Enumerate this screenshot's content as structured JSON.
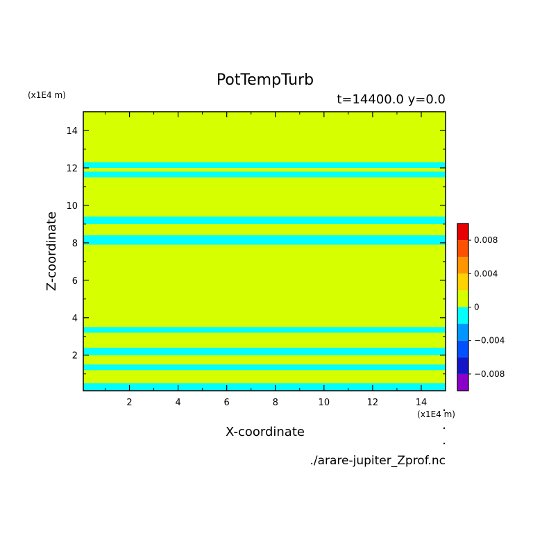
{
  "chart_data": {
    "type": "heatmap",
    "title": "PotTempTurb",
    "subtitle": "t=14400.0 y=0.0",
    "xlabel": "X-coordinate",
    "ylabel": "Z-coordinate",
    "x_unit": "(x1E4 m)",
    "y_unit": "(x1E4 m)",
    "xlim": [
      0.1,
      15
    ],
    "ylim": [
      0.1,
      15
    ],
    "xticks": [
      "2",
      "4",
      "6",
      "8",
      "10",
      "12",
      "14"
    ],
    "yticks": [
      "2",
      "4",
      "6",
      "8",
      "10",
      "12",
      "14"
    ],
    "background_level": "0 to 0.002",
    "background_color": "#d6ff00",
    "contour_color": "#00ffff",
    "colorbar": {
      "levels": [
        -0.01,
        -0.008,
        -0.006,
        -0.004,
        -0.002,
        0,
        0.002,
        0.004,
        0.006,
        0.008,
        0.01
      ],
      "colors": [
        "#8a00c8",
        "#1414c8",
        "#0050ff",
        "#0096ff",
        "#00ffff",
        "#d6ff00",
        "#ffd200",
        "#ff9600",
        "#ff5000",
        "#e60000",
        "#ffaaaa"
      ],
      "tick_labels": [
        "0.008",
        "0.004",
        "0",
        "−0.004",
        "−0.008"
      ],
      "tick_values": [
        0.008,
        0.004,
        0,
        -0.004,
        -0.008
      ]
    },
    "regions": [
      {
        "level": "-0.002 to 0",
        "x": [
          0.1,
          15
        ],
        "z": [
          0.1,
          0.5
        ]
      },
      {
        "level": "-0.002 to 0",
        "x": [
          0.1,
          15
        ],
        "z": [
          1.2,
          1.5
        ]
      },
      {
        "level": "-0.002 to 0",
        "x": [
          0.1,
          15
        ],
        "z": [
          2.0,
          2.4
        ]
      },
      {
        "level": "-0.002 to 0",
        "x": [
          0.1,
          15
        ],
        "z": [
          3.2,
          3.5
        ]
      },
      {
        "level": "-0.002 to 0",
        "x": [
          0.1,
          15
        ],
        "z": [
          7.9,
          8.4
        ]
      },
      {
        "level": "-0.002 to 0",
        "x": [
          0.1,
          15
        ],
        "z": [
          9.0,
          9.4
        ]
      },
      {
        "level": "-0.002 to 0",
        "x": [
          0.1,
          15
        ],
        "z": [
          11.5,
          11.8
        ]
      },
      {
        "level": "-0.002 to 0",
        "x": [
          0.1,
          15
        ],
        "z": [
          12.0,
          12.3
        ]
      }
    ],
    "filename": "./arare-jupiter_Zprof.nc"
  }
}
